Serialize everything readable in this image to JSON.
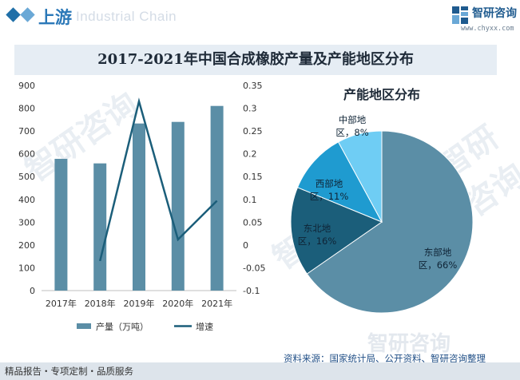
{
  "header": {
    "section_title": "上游",
    "watermark_en": "Industrial Chain",
    "brand_name": "智研咨询",
    "brand_url": "www.chyxx.com"
  },
  "chart_title": "2017-2021年中国合成橡胶产量及产能地区分布",
  "watermark": "智研咨询",
  "chart_data": [
    {
      "type": "bar",
      "categories": [
        "2017年",
        "2018年",
        "2019年",
        "2020年",
        "2021年"
      ],
      "series": [
        {
          "name": "产量（万吨）",
          "kind": "bar",
          "axis": "left",
          "values": [
            578,
            558,
            733,
            740,
            810
          ],
          "color": "#5b8ea6"
        },
        {
          "name": "增速",
          "kind": "line",
          "axis": "right",
          "values": [
            null,
            -0.035,
            0.315,
            0.012,
            0.097
          ],
          "color": "#1b5e7a"
        }
      ],
      "ylim": [
        0,
        900
      ],
      "yticks": [
        "0",
        "100",
        "200",
        "300",
        "400",
        "500",
        "600",
        "700",
        "800",
        "900"
      ],
      "y2lim": [
        -0.1,
        0.35
      ],
      "y2ticks": [
        "-0.1",
        "-0.05",
        "0",
        "0.05",
        "0.1",
        "0.15",
        "0.2",
        "0.25",
        "0.3",
        "0.35"
      ],
      "legend": [
        {
          "label": "产量（万吨）",
          "type": "bar",
          "color": "#5b8ea6"
        },
        {
          "label": "增速",
          "type": "line",
          "color": "#1b5e7a"
        }
      ]
    },
    {
      "type": "pie",
      "title": "产能地区分布",
      "slices": [
        {
          "name": "东部地区",
          "value": 66,
          "line1": "东部地",
          "line2": "区，66%",
          "color": "#5b8ea6"
        },
        {
          "name": "东北地区",
          "value": 16,
          "line1": "东北地",
          "line2": "区，16%",
          "color": "#1b5e7a"
        },
        {
          "name": "西部地区",
          "value": 11,
          "line1": "西部地",
          "line2": "区，11%",
          "color": "#1f9bd0"
        },
        {
          "name": "中部地区",
          "value": 8,
          "line1": "中部地",
          "line2": "区，8%",
          "color": "#6fcdf4"
        }
      ]
    }
  ],
  "footer": {
    "source": "资料来源：国家统计局、公开资料、智研咨询整理",
    "slogan": "精品报告・专项定制・品质服务"
  }
}
